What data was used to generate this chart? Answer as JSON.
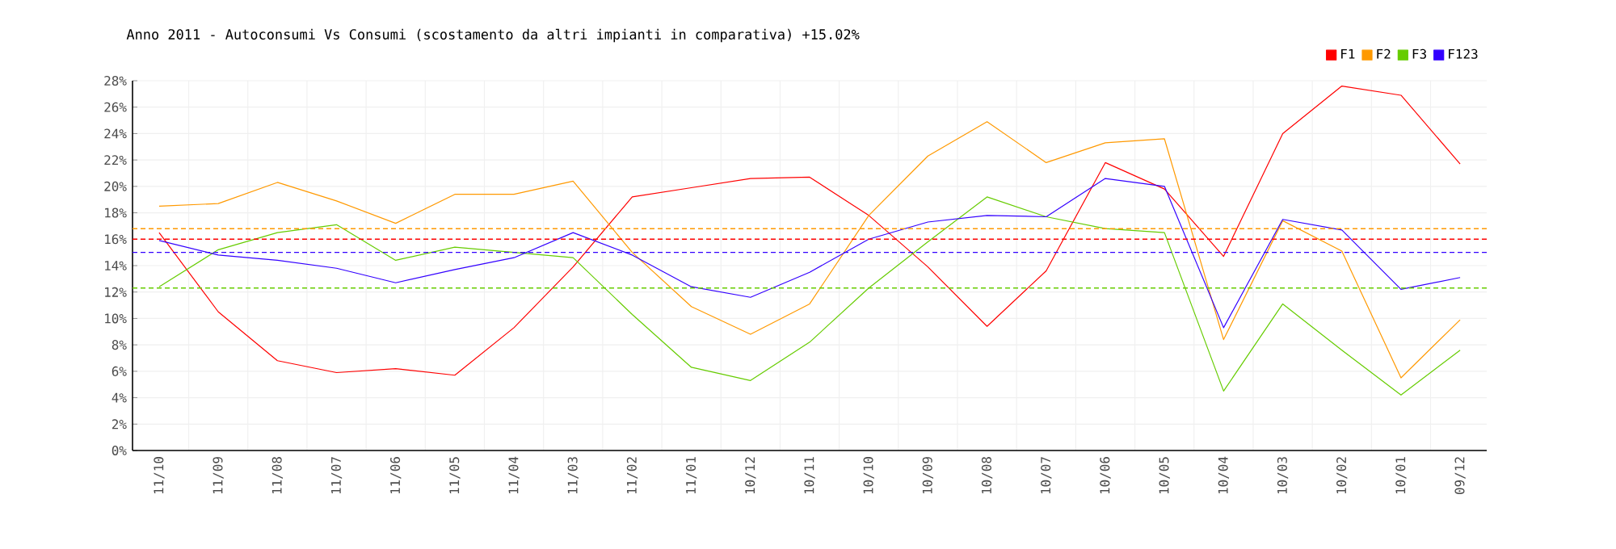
{
  "chart_data": {
    "type": "line",
    "title": "Anno 2011 - Autoconsumi Vs Consumi (scostamento da altri impianti in comparativa) +15.02%",
    "categories": [
      "11/10",
      "11/09",
      "11/08",
      "11/07",
      "11/06",
      "11/05",
      "11/04",
      "11/03",
      "11/02",
      "11/01",
      "10/12",
      "10/11",
      "10/10",
      "10/09",
      "10/08",
      "10/07",
      "10/06",
      "10/05",
      "10/04",
      "10/03",
      "10/02",
      "10/01",
      "09/12"
    ],
    "series": [
      {
        "name": "F1",
        "color": "#ff0000",
        "values": [
          16.5,
          10.5,
          6.8,
          5.9,
          6.2,
          5.7,
          9.3,
          13.9,
          19.2,
          19.9,
          20.6,
          20.7,
          17.8,
          13.9,
          9.4,
          13.6,
          21.8,
          19.8,
          14.7,
          24.0,
          27.6,
          26.9,
          21.7
        ]
      },
      {
        "name": "F2",
        "color": "#ff9900",
        "values": [
          18.5,
          18.7,
          20.3,
          18.9,
          17.2,
          19.4,
          19.4,
          20.4,
          15.0,
          10.9,
          8.8,
          11.1,
          17.8,
          22.3,
          24.9,
          21.8,
          23.3,
          23.6,
          8.4,
          17.4,
          15.1,
          5.5,
          9.9
        ]
      },
      {
        "name": "F3",
        "color": "#66cc00",
        "values": [
          12.4,
          15.2,
          16.5,
          17.1,
          14.4,
          15.4,
          15.0,
          14.6,
          10.3,
          6.3,
          5.3,
          8.2,
          12.3,
          15.8,
          19.2,
          17.7,
          16.8,
          16.5,
          4.5,
          11.1,
          7.6,
          4.2,
          7.6
        ]
      },
      {
        "name": "F123",
        "color": "#3300ff",
        "values": [
          15.9,
          14.8,
          14.4,
          13.8,
          12.7,
          13.7,
          14.6,
          16.5,
          14.8,
          12.4,
          11.6,
          13.5,
          16.0,
          17.3,
          17.8,
          17.7,
          20.6,
          20.0,
          9.3,
          17.5,
          16.7,
          12.2,
          13.1
        ]
      }
    ],
    "ylim": [
      0,
      28
    ],
    "yticks": [
      {
        "value": 0,
        "label": "0%"
      },
      {
        "value": 2,
        "label": "2%"
      },
      {
        "value": 4,
        "label": "4%"
      },
      {
        "value": 6,
        "label": "6%"
      },
      {
        "value": 8,
        "label": "8%"
      },
      {
        "value": 10,
        "label": "10%"
      },
      {
        "value": 12,
        "label": "12%"
      },
      {
        "value": 14,
        "label": "14%"
      },
      {
        "value": 16,
        "label": "16%"
      },
      {
        "value": 18,
        "label": "18%"
      },
      {
        "value": 20,
        "label": "20%"
      },
      {
        "value": 22,
        "label": "22%"
      },
      {
        "value": 24,
        "label": "24%"
      },
      {
        "value": 26,
        "label": "26%"
      },
      {
        "value": 28,
        "label": "28%"
      }
    ],
    "ref_lines": [
      {
        "axis": "y",
        "value": 16.0,
        "color": "#ff0000",
        "line_style": "dashed"
      },
      {
        "axis": "y",
        "value": 16.8,
        "color": "#ff9900",
        "line_style": "dashed"
      },
      {
        "axis": "y",
        "value": 12.3,
        "color": "#66cc00",
        "line_style": "dashed"
      },
      {
        "axis": "y",
        "value": 15.0,
        "color": "#3300ff",
        "line_style": "dashed"
      }
    ],
    "grid": true,
    "legend": "top right",
    "marker": "none",
    "line_style": "solid"
  }
}
